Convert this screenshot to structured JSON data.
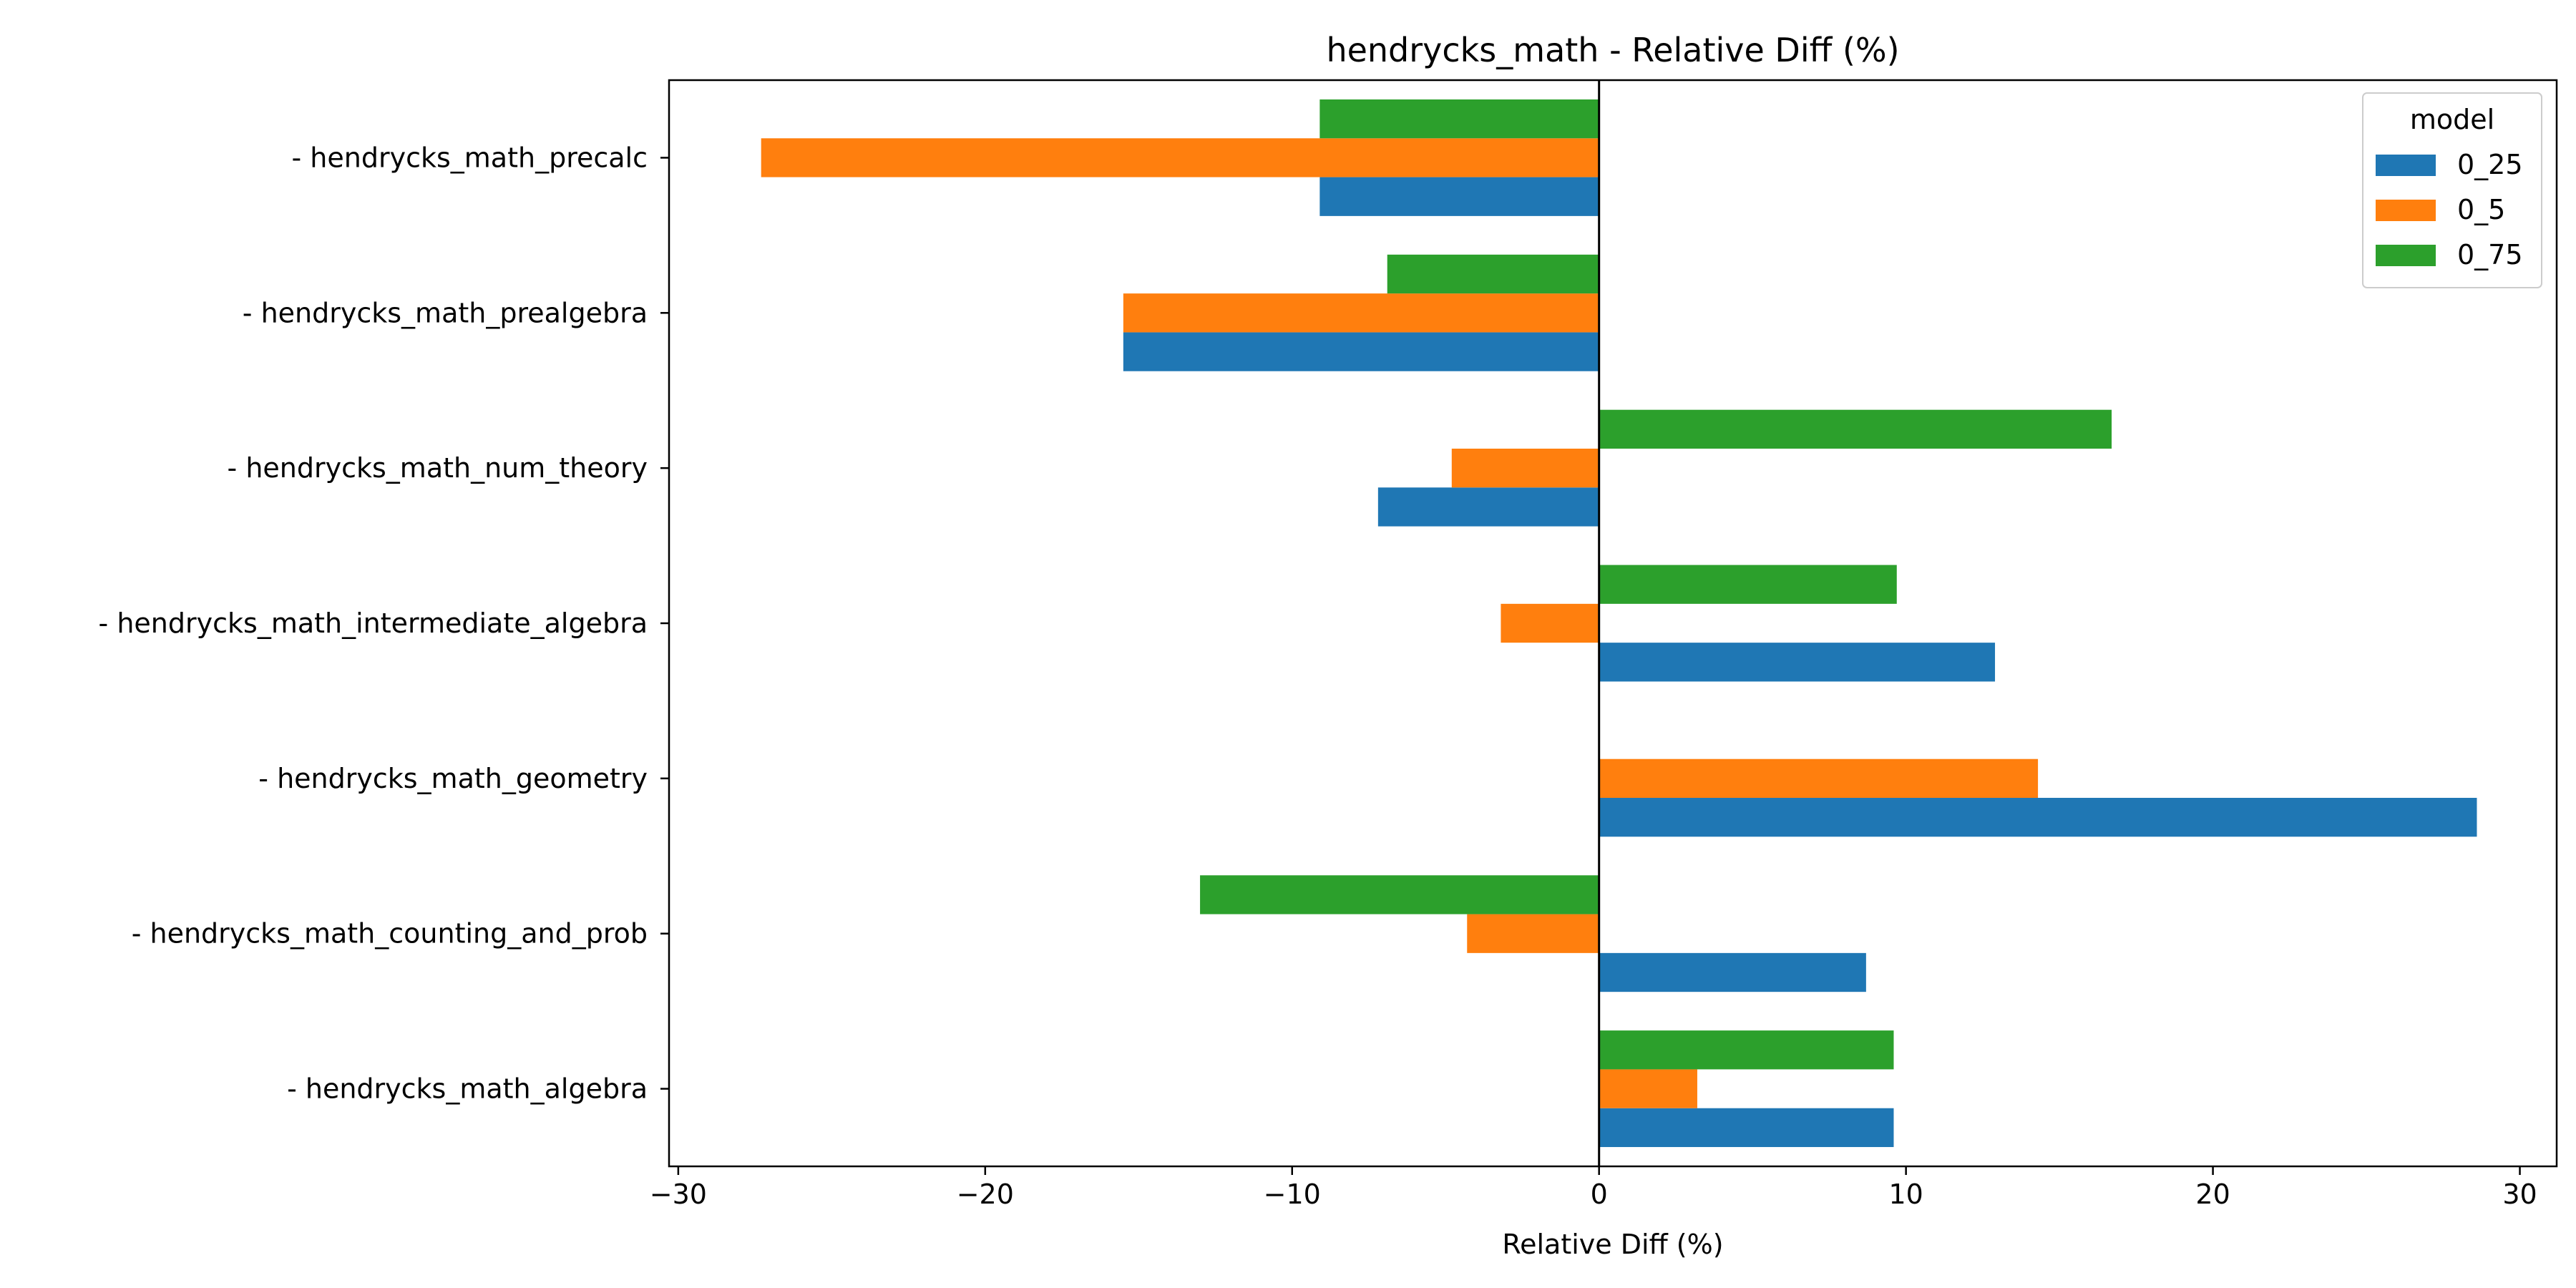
{
  "chart_data": {
    "type": "bar",
    "orientation": "horizontal",
    "title": "hendrycks_math - Relative Diff (%)",
    "xlabel": "Relative Diff (%)",
    "ylabel": "",
    "xlim": [
      -30.3,
      31.2
    ],
    "xticks": [
      -30,
      -20,
      -10,
      0,
      10,
      20,
      30
    ],
    "xtick_labels": [
      "−30",
      "−20",
      "−10",
      "0",
      "10",
      "20",
      "30"
    ],
    "grid": false,
    "legend": {
      "title": "model",
      "position": "top-right"
    },
    "categories": [
      "- hendrycks_math_algebra",
      "- hendrycks_math_counting_and_prob",
      "- hendrycks_math_geometry",
      "- hendrycks_math_intermediate_algebra",
      "- hendrycks_math_num_theory",
      "- hendrycks_math_prealgebra",
      "- hendrycks_math_precalc"
    ],
    "series": [
      {
        "name": "0_25",
        "color": "#1f77b4",
        "values": [
          9.6,
          8.7,
          28.6,
          12.9,
          -7.2,
          -15.5,
          -9.1
        ]
      },
      {
        "name": "0_5",
        "color": "#ff7f0e",
        "values": [
          3.2,
          -4.3,
          14.3,
          -3.2,
          -4.8,
          -15.5,
          -27.3
        ]
      },
      {
        "name": "0_75",
        "color": "#2ca02c",
        "values": [
          9.6,
          -13.0,
          0.0,
          9.7,
          16.7,
          -6.9,
          -9.1
        ]
      }
    ],
    "reference_line": {
      "x": 0,
      "color": "#000000"
    }
  }
}
